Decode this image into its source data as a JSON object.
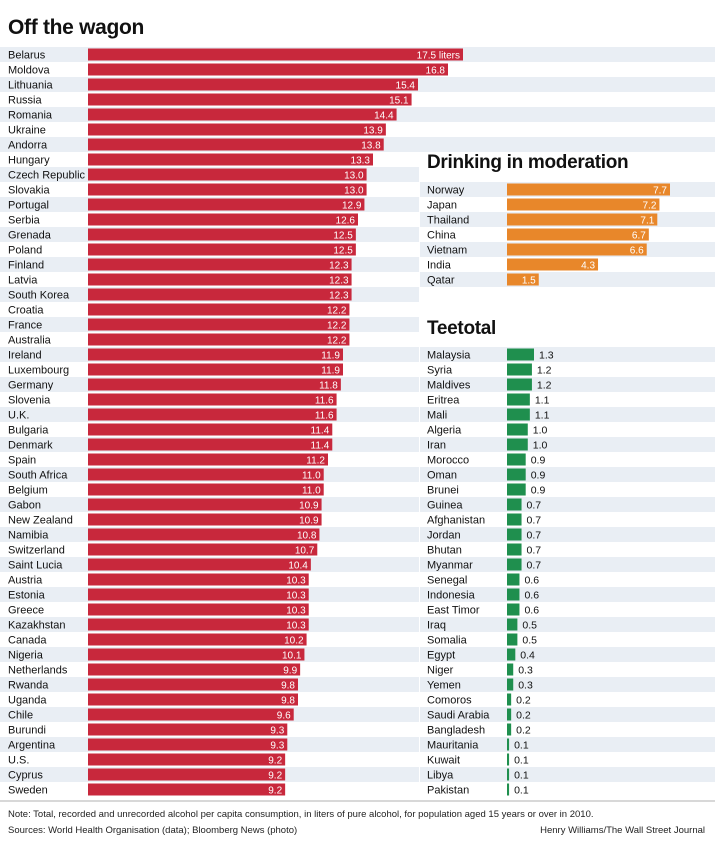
{
  "chart_data": [
    {
      "type": "bar",
      "orientation": "horizontal",
      "title": "Off the wagon",
      "unit_label": "liters",
      "color": "#c8283c",
      "categories": [
        "Belarus",
        "Moldova",
        "Lithuania",
        "Russia",
        "Romania",
        "Ukraine",
        "Andorra",
        "Hungary",
        "Czech Republic",
        "Slovakia",
        "Portugal",
        "Serbia",
        "Grenada",
        "Poland",
        "Finland",
        "Latvia",
        "South Korea",
        "Croatia",
        "France",
        "Australia",
        "Ireland",
        "Luxembourg",
        "Germany",
        "Slovenia",
        "U.K.",
        "Bulgaria",
        "Denmark",
        "Spain",
        "South Africa",
        "Belgium",
        "Gabon",
        "New Zealand",
        "Namibia",
        "Switzerland",
        "Saint Lucia",
        "Austria",
        "Estonia",
        "Greece",
        "Kazakhstan",
        "Canada",
        "Nigeria",
        "Netherlands",
        "Rwanda",
        "Uganda",
        "Chile",
        "Burundi",
        "Argentina",
        "U.S.",
        "Cyprus",
        "Sweden"
      ],
      "values": [
        17.5,
        16.8,
        15.4,
        15.1,
        14.4,
        13.9,
        13.8,
        13.3,
        13.0,
        13.0,
        12.9,
        12.6,
        12.5,
        12.5,
        12.3,
        12.3,
        12.3,
        12.2,
        12.2,
        12.2,
        11.9,
        11.9,
        11.8,
        11.6,
        11.6,
        11.4,
        11.4,
        11.2,
        11.0,
        11.0,
        10.9,
        10.9,
        10.8,
        10.7,
        10.4,
        10.3,
        10.3,
        10.3,
        10.3,
        10.2,
        10.1,
        9.9,
        9.8,
        9.8,
        9.6,
        9.3,
        9.3,
        9.2,
        9.2,
        9.2
      ],
      "labels": [
        "17.5 liters",
        "16.8",
        "15.4",
        "15.1",
        "14.4",
        "13.9",
        "13.8",
        "13.3",
        "13.0",
        "13.0",
        "12.9",
        "12.6",
        "12.5",
        "12.5",
        "12.3",
        "12.3",
        "12.3",
        "12.2",
        "12.2",
        "12.2",
        "11.9",
        "11.9",
        "11.8",
        "11.6",
        "11.6",
        "11.4",
        "11.4",
        "11.2",
        "11.0",
        "11.0",
        "10.9",
        "10.9",
        "10.8",
        "10.7",
        "10.4",
        "10.3",
        "10.3",
        "10.3",
        "10.3",
        "10.2",
        "10.1",
        "9.9",
        "9.8",
        "9.8",
        "9.6",
        "9.3",
        "9.3",
        "9.2",
        "9.2",
        "9.2"
      ]
    },
    {
      "type": "bar",
      "orientation": "horizontal",
      "title": "Drinking in moderation",
      "color": "#e8872a",
      "categories": [
        "Norway",
        "Japan",
        "Thailand",
        "China",
        "Vietnam",
        "India",
        "Qatar"
      ],
      "values": [
        7.7,
        7.2,
        7.1,
        6.7,
        6.6,
        4.3,
        1.5
      ],
      "labels": [
        "7.7",
        "7.2",
        "7.1",
        "6.7",
        "6.6",
        "4.3",
        "1.5"
      ]
    },
    {
      "type": "bar",
      "orientation": "horizontal",
      "title": "Teetotal",
      "color": "#1f8f4e",
      "categories": [
        "Malaysia",
        "Syria",
        "Maldives",
        "Eritrea",
        "Mali",
        "Algeria",
        "Iran",
        "Morocco",
        "Oman",
        "Brunei",
        "Guinea",
        "Afghanistan",
        "Jordan",
        "Bhutan",
        "Myanmar",
        "Senegal",
        "Indonesia",
        "East Timor",
        "Iraq",
        "Somalia",
        "Egypt",
        "Niger",
        "Yemen",
        "Comoros",
        "Saudi Arabia",
        "Bangladesh",
        "Mauritania",
        "Kuwait",
        "Libya",
        "Pakistan"
      ],
      "values": [
        1.3,
        1.2,
        1.2,
        1.1,
        1.1,
        1.0,
        1.0,
        0.9,
        0.9,
        0.9,
        0.7,
        0.7,
        0.7,
        0.7,
        0.7,
        0.6,
        0.6,
        0.6,
        0.5,
        0.5,
        0.4,
        0.3,
        0.3,
        0.2,
        0.2,
        0.2,
        0.1,
        0.1,
        0.1,
        0.1
      ],
      "labels": [
        "1.3",
        "1.2",
        "1.2",
        "1.1",
        "1.1",
        "1.0",
        "1.0",
        "0.9",
        "0.9",
        "0.9",
        "0.7",
        "0.7",
        "0.7",
        "0.7",
        "0.7",
        "0.6",
        "0.6",
        "0.6",
        "0.5",
        "0.5",
        "0.4",
        "0.3",
        "0.3",
        "0.2",
        "0.2",
        "0.2",
        "0.1",
        "0.1",
        "0.1",
        "0.1"
      ]
    }
  ],
  "footer": {
    "note": "Note: Total, recorded and unrecorded alcohol per capita consumption, in liters of pure alcohol, for population aged 15 years or over in 2010.",
    "sources": "Sources: World Health Organisation (data); Bloomberg News (photo)",
    "credit": "Henry Williams/The Wall Street Journal"
  }
}
